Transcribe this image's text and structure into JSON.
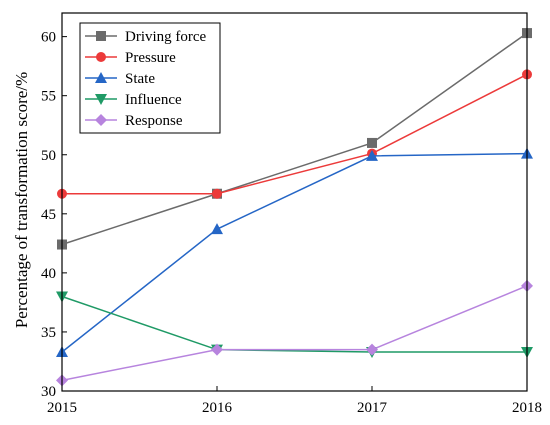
{
  "chart_data": {
    "type": "line",
    "title": "",
    "xlabel": "",
    "ylabel": "Percentage of transformation score/%",
    "x": [
      2015,
      2016,
      2017,
      2018
    ],
    "xlim": [
      2015,
      2018
    ],
    "ylim": [
      30,
      62
    ],
    "yticks": [
      30,
      35,
      40,
      45,
      50,
      55,
      60
    ],
    "grid": false,
    "legend_position": "top-left",
    "series": [
      {
        "name": "Driving force",
        "color": "#6b6b6b",
        "marker": "square",
        "values": [
          42.4,
          46.7,
          51.0,
          60.3
        ]
      },
      {
        "name": "Pressure",
        "color": "#ec3a3a",
        "marker": "circle",
        "values": [
          46.7,
          46.7,
          50.1,
          56.8
        ]
      },
      {
        "name": "State",
        "color": "#2566c6",
        "marker": "triangle-up",
        "values": [
          33.3,
          43.7,
          49.9,
          50.1
        ]
      },
      {
        "name": "Influence",
        "color": "#1f9a66",
        "marker": "triangle-down",
        "values": [
          38.0,
          33.5,
          33.3,
          33.3
        ]
      },
      {
        "name": "Response",
        "color": "#b784de",
        "marker": "diamond",
        "values": [
          30.9,
          33.5,
          33.5,
          38.9
        ]
      }
    ]
  }
}
